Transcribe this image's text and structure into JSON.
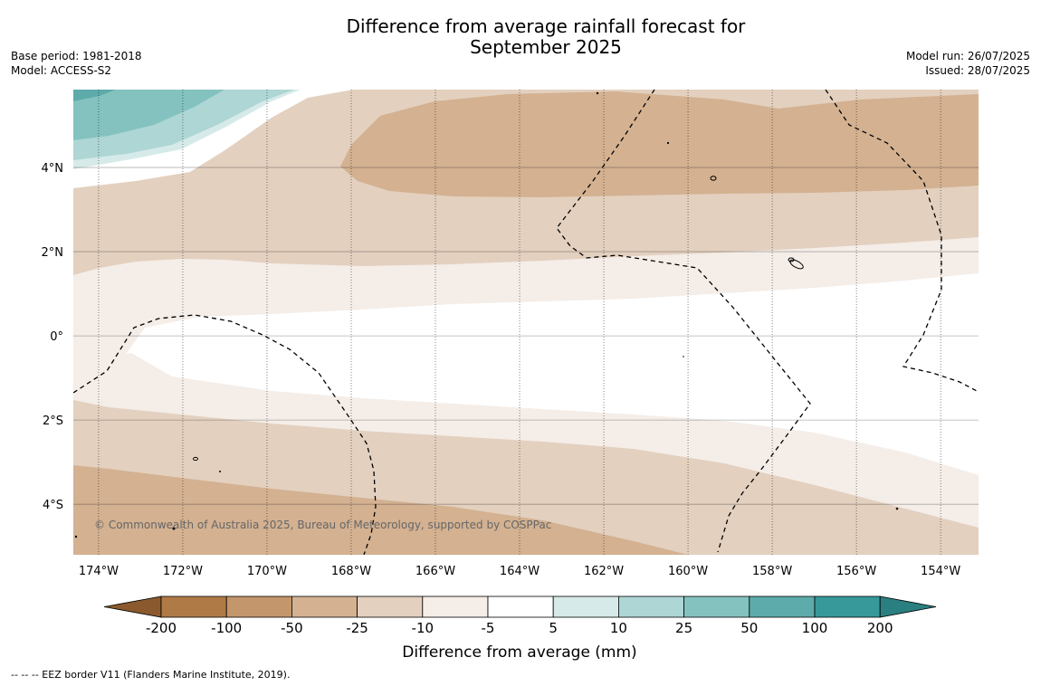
{
  "title_line1": "Difference from average rainfall forecast for",
  "title_line2": "September 2025",
  "base_period": "Base period: 1981-2018",
  "model": "Model: ACCESS-S2",
  "model_run": "Model run: 26/07/2025",
  "issued": "Issued: 28/07/2025",
  "copyright": "© Commonwealth of Australia 2025, Bureau of Meteorology, supported by COSPPac",
  "footnote": "--  --  -- EEZ border V11 (Flanders Marine Institute, 2019).",
  "map": {
    "lon_range": [
      -174.6,
      -153.1
    ],
    "lat_range": [
      -5.2,
      5.85
    ],
    "lon_ticks": [
      {
        "value": -174,
        "label": "174°W"
      },
      {
        "value": -172,
        "label": "172°W"
      },
      {
        "value": -170,
        "label": "170°W"
      },
      {
        "value": -168,
        "label": "168°W"
      },
      {
        "value": -166,
        "label": "166°W"
      },
      {
        "value": -164,
        "label": "164°W"
      },
      {
        "value": -162,
        "label": "162°W"
      },
      {
        "value": -160,
        "label": "160°W"
      },
      {
        "value": -158,
        "label": "158°W"
      },
      {
        "value": -156,
        "label": "156°W"
      },
      {
        "value": -154,
        "label": "154°W"
      }
    ],
    "lat_ticks": [
      {
        "value": 4,
        "label": "4°N"
      },
      {
        "value": 2,
        "label": "2°N"
      },
      {
        "value": 0,
        "label": "0°"
      },
      {
        "value": -2,
        "label": "2°S"
      },
      {
        "value": -4,
        "label": "4°S"
      }
    ]
  },
  "colorbar": {
    "label": "Difference from average (mm)",
    "ticks": [
      "-200",
      "-100",
      "-50",
      "-25",
      "-10",
      "-5",
      "5",
      "10",
      "25",
      "50",
      "100",
      "200"
    ],
    "colors": [
      "#8a5a2e",
      "#b07a46",
      "#c4966c",
      "#d3b191",
      "#e3d0bf",
      "#f4ede8",
      "#ffffff",
      "#d6ebe9",
      "#aed6d5",
      "#84c2c0",
      "#5dabaa",
      "#37999a",
      "#2a7f80"
    ]
  }
}
